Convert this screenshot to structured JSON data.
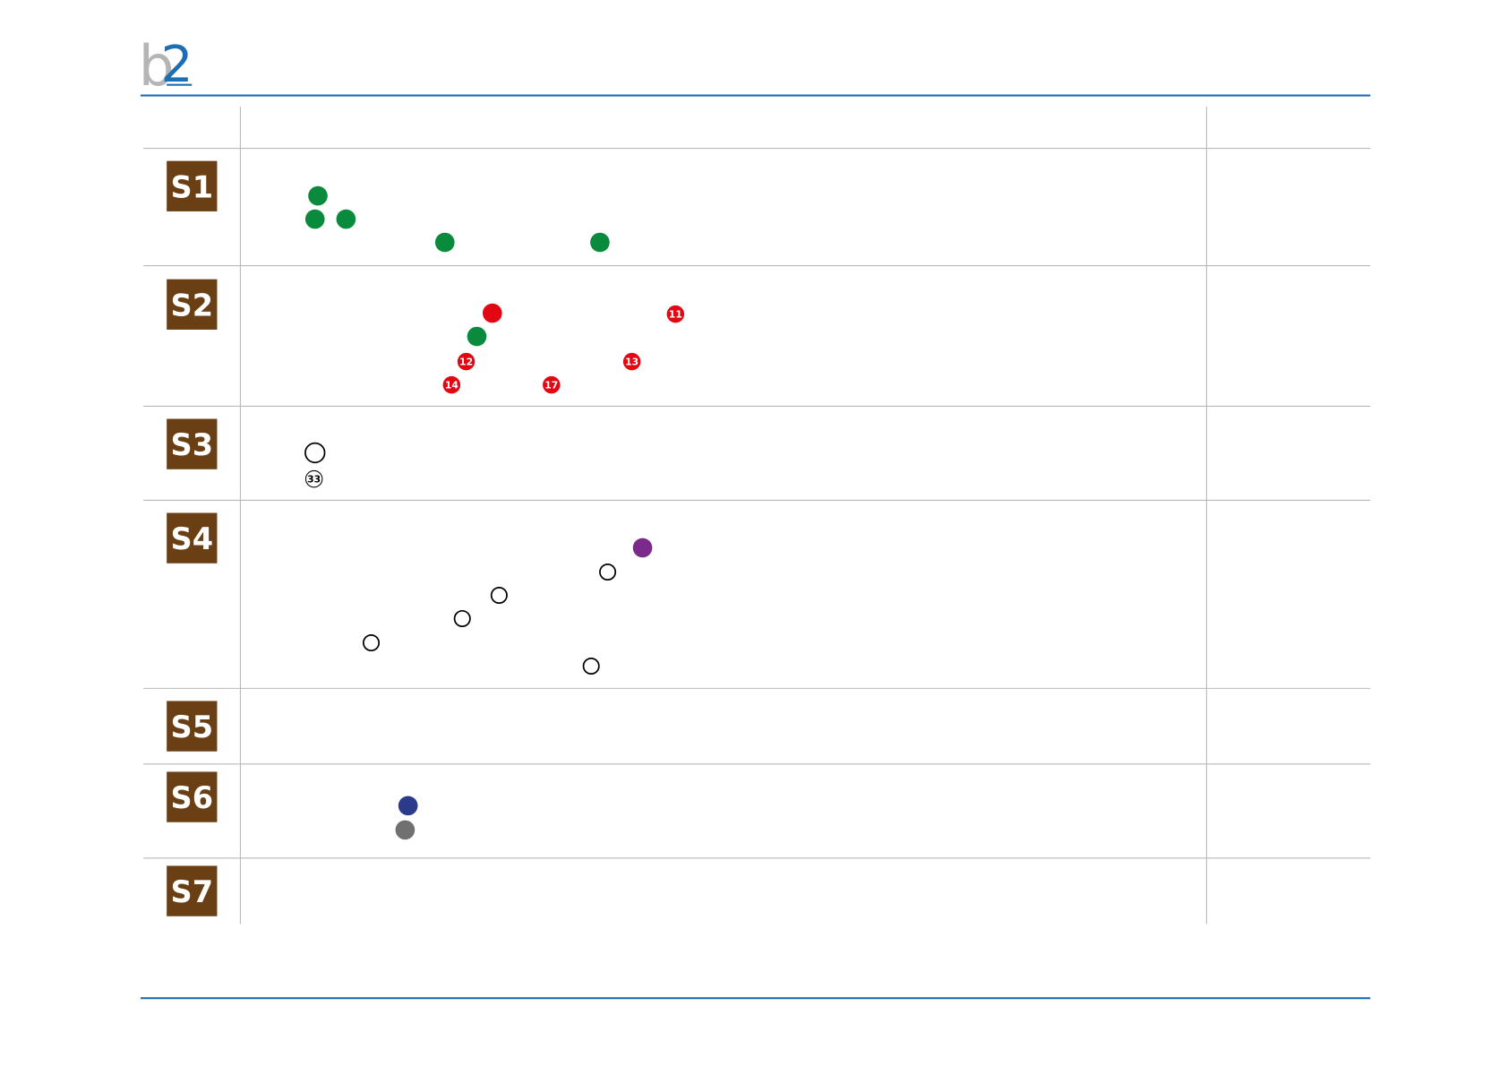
{
  "logo": {
    "letter": "b",
    "digit": "2"
  },
  "rows": [
    {
      "label": "S1"
    },
    {
      "label": "S2"
    },
    {
      "label": "S3"
    },
    {
      "label": "S4"
    },
    {
      "label": "S5"
    },
    {
      "label": "S6"
    },
    {
      "label": "S7"
    }
  ],
  "badges": [
    "11",
    "12",
    "13",
    "14",
    "17",
    "33"
  ]
}
